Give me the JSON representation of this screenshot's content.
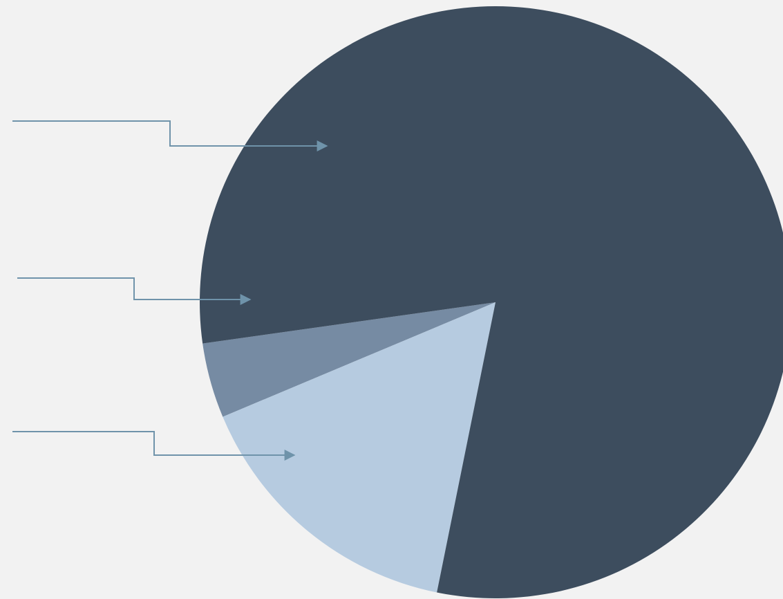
{
  "colors": {
    "background": "#f2f2f2",
    "connector": "#6f93aa"
  },
  "chart_data": {
    "type": "pie",
    "title": "",
    "legend": "none",
    "start_angle_deg": 188,
    "direction": "counterclockwise",
    "slices": [
      {
        "label": "",
        "value": 4.1,
        "color": "#768ba3"
      },
      {
        "label": "",
        "value": 15.5,
        "color": "#b6cbe0"
      },
      {
        "label": "",
        "value": 80.4,
        "color": "#3d4d5e"
      }
    ],
    "callouts": [
      {
        "slice": 2,
        "label": ""
      },
      {
        "slice": 0,
        "label": ""
      },
      {
        "slice": 1,
        "label": ""
      }
    ]
  }
}
